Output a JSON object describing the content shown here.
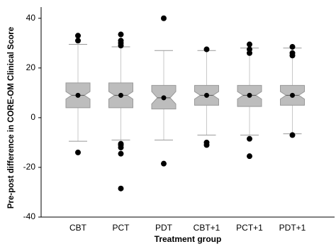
{
  "chart_data": {
    "type": "boxplot",
    "y_label": "Pre-post difference in CORE-OM Clinical Score",
    "x_label": "Treatment group",
    "categories": [
      "CBT",
      "PCT",
      "PDT",
      "CBT+1",
      "PCT+1",
      "PDT+1"
    ],
    "boxes": [
      {
        "whisker_low": -9.5,
        "q1": 4,
        "notch_low": 7.5,
        "median": 9,
        "notch_high": 10.5,
        "q3": 14,
        "whisker_high": 29.5,
        "outliers": [
          33,
          31,
          -14
        ]
      },
      {
        "whisker_low": -9,
        "q1": 4,
        "notch_low": 7.5,
        "median": 9,
        "notch_high": 10.5,
        "q3": 14,
        "whisker_high": 28.5,
        "outliers": [
          33.5,
          31,
          30,
          29,
          -10.5,
          -11,
          -12,
          -14.5,
          -28.5
        ]
      },
      {
        "whisker_low": -9,
        "q1": 3.5,
        "notch_low": 5.5,
        "median": 8,
        "notch_high": 10.5,
        "q3": 13,
        "whisker_high": 27,
        "outliers": [
          40,
          -18.5
        ]
      },
      {
        "whisker_low": -7,
        "q1": 5,
        "notch_low": 7.5,
        "median": 9,
        "notch_high": 10.5,
        "q3": 13,
        "whisker_high": 27,
        "outliers": [
          27.5,
          -10,
          -11
        ]
      },
      {
        "whisker_low": -7,
        "q1": 4.5,
        "notch_low": 7.5,
        "median": 9,
        "notch_high": 10.5,
        "q3": 13,
        "whisker_high": 28,
        "outliers": [
          29.5,
          27.5,
          26,
          -8.5,
          -15.5
        ]
      },
      {
        "whisker_low": -6.5,
        "q1": 5,
        "notch_low": 7.5,
        "median": 9,
        "notch_high": 10.5,
        "q3": 13,
        "whisker_high": 28,
        "outliers": [
          28.5,
          26,
          25,
          -7
        ]
      }
    ],
    "box_color": "#bdbdbd",
    "outlier_color": "#000000",
    "ylim": [
      -40,
      44.5
    ],
    "yticks": [
      -40,
      -20,
      0,
      20,
      40
    ]
  }
}
